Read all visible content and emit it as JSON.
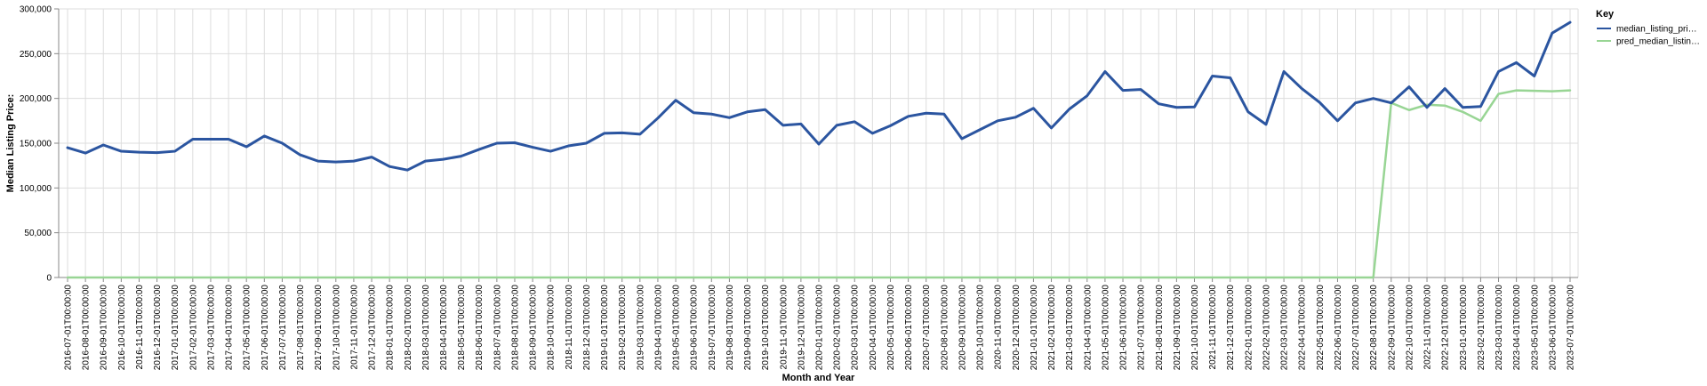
{
  "chart_data": {
    "type": "line",
    "xlabel": "Month and Year",
    "ylabel": "Median Listing Price:",
    "ylim": [
      0,
      300000
    ],
    "yticks": [
      0,
      50000,
      100000,
      150000,
      200000,
      250000,
      300000
    ],
    "ytick_labels": [
      "0",
      "50,000",
      "100,000",
      "150,000",
      "200,000",
      "250,000",
      "300,000"
    ],
    "grid": true,
    "legend": {
      "title": "Key",
      "placement": "right",
      "entries": [
        "median_listing_pri…",
        "pred_median_listin…"
      ]
    },
    "x": [
      "2016-07-01T00:00:00",
      "2016-08-01T00:00:00",
      "2016-09-01T00:00:00",
      "2016-10-01T00:00:00",
      "2016-11-01T00:00:00",
      "2016-12-01T00:00:00",
      "2017-01-01T00:00:00",
      "2017-02-01T00:00:00",
      "2017-03-01T00:00:00",
      "2017-04-01T00:00:00",
      "2017-05-01T00:00:00",
      "2017-06-01T00:00:00",
      "2017-07-01T00:00:00",
      "2017-08-01T00:00:00",
      "2017-09-01T00:00:00",
      "2017-10-01T00:00:00",
      "2017-11-01T00:00:00",
      "2017-12-01T00:00:00",
      "2018-01-01T00:00:00",
      "2018-02-01T00:00:00",
      "2018-03-01T00:00:00",
      "2018-04-01T00:00:00",
      "2018-05-01T00:00:00",
      "2018-06-01T00:00:00",
      "2018-07-01T00:00:00",
      "2018-08-01T00:00:00",
      "2018-09-01T00:00:00",
      "2018-10-01T00:00:00",
      "2018-11-01T00:00:00",
      "2018-12-01T00:00:00",
      "2019-01-01T00:00:00",
      "2019-02-01T00:00:00",
      "2019-03-01T00:00:00",
      "2019-04-01T00:00:00",
      "2019-05-01T00:00:00",
      "2019-06-01T00:00:00",
      "2019-07-01T00:00:00",
      "2019-08-01T00:00:00",
      "2019-09-01T00:00:00",
      "2019-10-01T00:00:00",
      "2019-11-01T00:00:00",
      "2019-12-01T00:00:00",
      "2020-01-01T00:00:00",
      "2020-02-01T00:00:00",
      "2020-03-01T00:00:00",
      "2020-04-01T00:00:00",
      "2020-05-01T00:00:00",
      "2020-06-01T00:00:00",
      "2020-07-01T00:00:00",
      "2020-08-01T00:00:00",
      "2020-09-01T00:00:00",
      "2020-10-01T00:00:00",
      "2020-11-01T00:00:00",
      "2020-12-01T00:00:00",
      "2021-01-01T00:00:00",
      "2021-02-01T00:00:00",
      "2021-03-01T00:00:00",
      "2021-04-01T00:00:00",
      "2021-05-01T00:00:00",
      "2021-06-01T00:00:00",
      "2021-07-01T00:00:00",
      "2021-08-01T00:00:00",
      "2021-09-01T00:00:00",
      "2021-10-01T00:00:00",
      "2021-11-01T00:00:00",
      "2021-12-01T00:00:00",
      "2022-01-01T00:00:00",
      "2022-02-01T00:00:00",
      "2022-03-01T00:00:00",
      "2022-04-01T00:00:00",
      "2022-05-01T00:00:00",
      "2022-06-01T00:00:00",
      "2022-07-01T00:00:00",
      "2022-08-01T00:00:00",
      "2022-09-01T00:00:00",
      "2022-10-01T00:00:00",
      "2022-11-01T00:00:00",
      "2022-12-01T00:00:00",
      "2023-01-01T00:00:00",
      "2023-02-01T00:00:00",
      "2023-03-01T00:00:00",
      "2023-04-01T00:00:00",
      "2023-05-01T00:00:00",
      "2023-06-01T00:00:00",
      "2023-07-01T00:00:00"
    ],
    "series": [
      {
        "name": "median_listing_pri…",
        "color": "#2b55a0",
        "values": [
          145000,
          139000,
          148000,
          141000,
          140000,
          139500,
          141000,
          154500,
          154500,
          154500,
          146000,
          158000,
          150000,
          137000,
          130000,
          129000,
          130000,
          134500,
          124000,
          120000,
          130000,
          132000,
          135500,
          143000,
          150000,
          150500,
          145500,
          141000,
          147000,
          150000,
          161000,
          161500,
          160000,
          178000,
          198000,
          184000,
          182500,
          178500,
          185000,
          187500,
          170000,
          171500,
          149000,
          170000,
          174000,
          161000,
          169500,
          180000,
          183500,
          182500,
          155000,
          165000,
          175000,
          179000,
          189000,
          167000,
          188000,
          203000,
          230000,
          209000,
          210000,
          194000,
          190000,
          190500,
          225000,
          223000,
          185000,
          171000,
          230000,
          211000,
          195500,
          175000,
          195000,
          200000,
          195000,
          213000,
          190000,
          211000,
          190000,
          191000,
          230000,
          240000,
          225000,
          273000,
          285000
        ]
      },
      {
        "name": "pred_median_listin…",
        "color": "#98d594",
        "values": [
          0,
          0,
          0,
          0,
          0,
          0,
          0,
          0,
          0,
          0,
          0,
          0,
          0,
          0,
          0,
          0,
          0,
          0,
          0,
          0,
          0,
          0,
          0,
          0,
          0,
          0,
          0,
          0,
          0,
          0,
          0,
          0,
          0,
          0,
          0,
          0,
          0,
          0,
          0,
          0,
          0,
          0,
          0,
          0,
          0,
          0,
          0,
          0,
          0,
          0,
          0,
          0,
          0,
          0,
          0,
          0,
          0,
          0,
          0,
          0,
          0,
          0,
          0,
          0,
          0,
          0,
          0,
          0,
          0,
          0,
          0,
          0,
          0,
          0,
          195000,
          187000,
          193000,
          192000,
          185000,
          175000,
          205000,
          209000,
          208500,
          208000,
          209000
        ]
      }
    ]
  }
}
